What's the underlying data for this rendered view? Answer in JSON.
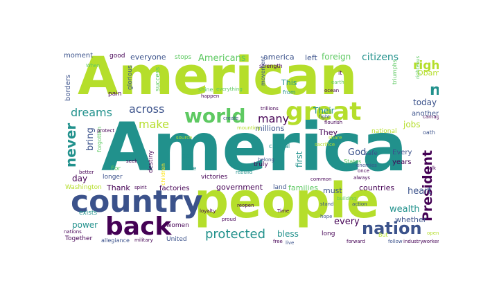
{
  "palette": {
    "purple": "#440154",
    "indigo": "#3b528b",
    "teal": "#21918c",
    "green": "#5ec962",
    "lime": "#b5de2b",
    "yellow": "#fde725"
  },
  "words": [
    {
      "text": "American",
      "color": "lime"
    },
    {
      "text": "America",
      "color": "teal"
    },
    {
      "text": "people",
      "color": "lime"
    },
    {
      "text": "country",
      "color": "indigo"
    },
    {
      "text": "back",
      "color": "purple"
    },
    {
      "text": "great",
      "color": "lime"
    },
    {
      "text": "world",
      "color": "green"
    },
    {
      "text": "nation",
      "color": "indigo"
    },
    {
      "text": "protected",
      "color": "teal"
    },
    {
      "text": "new",
      "color": "teal"
    },
    {
      "text": "right",
      "color": "lime"
    },
    {
      "text": "President",
      "color": "purple"
    },
    {
      "text": "never",
      "color": "teal"
    },
    {
      "text": "dreams",
      "color": "teal"
    },
    {
      "text": "across",
      "color": "indigo"
    },
    {
      "text": "make",
      "color": "lime"
    },
    {
      "text": "many",
      "color": "purple"
    },
    {
      "text": "millions",
      "color": "indigo"
    },
    {
      "text": "Americans",
      "color": "green"
    },
    {
      "text": "citizens",
      "color": "teal"
    },
    {
      "text": "everyone",
      "color": "indigo"
    },
    {
      "text": "america",
      "color": "indigo"
    },
    {
      "text": "foreign",
      "color": "green"
    },
    {
      "text": "bring",
      "color": "indigo"
    },
    {
      "text": "today",
      "color": "indigo"
    },
    {
      "text": "jobs",
      "color": "lime"
    },
    {
      "text": "heart",
      "color": "indigo"
    },
    {
      "text": "wealth",
      "color": "teal"
    },
    {
      "text": "every",
      "color": "purple"
    },
    {
      "text": "power",
      "color": "teal"
    },
    {
      "text": "government",
      "color": "purple"
    },
    {
      "text": "factories",
      "color": "purple"
    },
    {
      "text": "families",
      "color": "green"
    },
    {
      "text": "countries",
      "color": "purple"
    },
    {
      "text": "bless",
      "color": "teal"
    },
    {
      "text": "must",
      "color": "indigo"
    },
    {
      "text": "left",
      "color": "indigo"
    },
    {
      "text": "Obama",
      "color": "lime"
    },
    {
      "text": "day",
      "color": "purple"
    },
    {
      "text": "Thank",
      "color": "purple"
    },
    {
      "text": "God",
      "color": "indigo"
    },
    {
      "text": "first",
      "color": "teal"
    },
    {
      "text": "This",
      "color": "teal"
    },
    {
      "text": "Their",
      "color": "teal"
    },
    {
      "text": "They",
      "color": "purple"
    },
    {
      "text": "whether",
      "color": "indigo"
    },
    {
      "text": "Washington",
      "color": "lime"
    },
    {
      "text": "stops",
      "color": "green"
    },
    {
      "text": "good",
      "color": "purple"
    },
    {
      "text": "moment",
      "color": "indigo"
    },
    {
      "text": "borders",
      "color": "indigo"
    },
    {
      "text": "victories",
      "color": "purple"
    },
    {
      "text": "another",
      "color": "indigo"
    },
    {
      "text": "years",
      "color": "purple"
    },
    {
      "text": "Every",
      "color": "indigo"
    },
    {
      "text": "safe",
      "color": "indigo"
    },
    {
      "text": "States",
      "color": "green"
    },
    {
      "text": "women",
      "color": "purple"
    },
    {
      "text": "United",
      "color": "indigo"
    },
    {
      "text": "Together",
      "color": "purple"
    },
    {
      "text": "exists",
      "color": "teal"
    },
    {
      "text": "capital",
      "color": "teal"
    },
    {
      "text": "national",
      "color": "lime"
    },
    {
      "text": "like",
      "color": "teal"
    },
    {
      "text": "get",
      "color": "teal"
    },
    {
      "text": "longer",
      "color": "indigo"
    },
    {
      "text": "For",
      "color": "green"
    },
    {
      "text": "pain",
      "color": "purple"
    },
    {
      "text": "success",
      "color": "green"
    },
    {
      "text": "glorious",
      "color": "indigo"
    },
    {
      "text": "destiny",
      "color": "purple"
    },
    {
      "text": "land",
      "color": "indigo"
    },
    {
      "text": "truly",
      "color": "purple"
    },
    {
      "text": "long",
      "color": "purple"
    },
    {
      "text": "allegiance",
      "color": "indigo"
    },
    {
      "text": "military",
      "color": "purple"
    },
    {
      "text": "forgotten",
      "color": "green"
    },
    {
      "text": "oath",
      "color": "indigo"
    },
    {
      "text": "shine",
      "color": "green"
    },
    {
      "text": "strength",
      "color": "purple"
    },
    {
      "text": "movement",
      "color": "indigo"
    },
    {
      "text": "ocean",
      "color": "purple"
    },
    {
      "text": "trillions",
      "color": "purple"
    },
    {
      "text": "earth",
      "color": "green"
    },
    {
      "text": "triumphs",
      "color": "green"
    },
    {
      "text": "children",
      "color": "yellow"
    },
    {
      "text": "industry",
      "color": "purple"
    },
    {
      "text": "workers",
      "color": "purple"
    },
    {
      "text": "from",
      "color": "teal"
    },
    {
      "text": "it",
      "color": "purple"
    },
    {
      "text": "When",
      "color": "green"
    },
    {
      "text": "nations",
      "color": "purple"
    },
    {
      "text": "follow",
      "color": "indigo"
    },
    {
      "text": "But",
      "color": "lime"
    },
    {
      "text": "forward",
      "color": "purple"
    },
    {
      "text": "action",
      "color": "indigo"
    },
    {
      "text": "live",
      "color": "indigo"
    },
    {
      "text": "talk",
      "color": "purple"
    },
    {
      "text": "righteous",
      "color": "green"
    },
    {
      "text": "spirit",
      "color": "purple"
    },
    {
      "text": "loyalty",
      "color": "purple"
    },
    {
      "text": "reopen",
      "color": "purple"
    },
    {
      "text": "Time",
      "color": "purple"
    },
    {
      "text": "source",
      "color": "lime"
    },
    {
      "text": "always",
      "color": "purple"
    },
    {
      "text": "common",
      "color": "purple"
    },
    {
      "text": "rebuild",
      "color": "teal"
    },
    {
      "text": "mounting",
      "color": "lime"
    },
    {
      "text": "everything",
      "color": "green"
    },
    {
      "text": "create",
      "color": "indigo"
    },
    {
      "text": "share",
      "color": "lime"
    },
    {
      "text": "sacrifice",
      "color": "lime"
    },
    {
      "text": "flourish",
      "color": "purple"
    },
    {
      "text": "fight",
      "color": "indigo"
    },
    {
      "text": "carnage",
      "color": "purple"
    },
    {
      "text": "building",
      "color": "green"
    },
    {
      "text": "enemies",
      "color": "indigo"
    },
    {
      "text": "protect",
      "color": "purple"
    },
    {
      "text": "seek",
      "color": "purple"
    },
    {
      "text": "better",
      "color": "purple"
    },
    {
      "text": "happen",
      "color": "purple"
    },
    {
      "text": "stand",
      "color": "indigo"
    },
    {
      "text": "hope",
      "color": "indigo"
    },
    {
      "text": "open",
      "color": "lime"
    },
    {
      "text": "free",
      "color": "purple"
    },
    {
      "text": "proud",
      "color": "purple"
    },
    {
      "text": "once",
      "color": "purple"
    },
    {
      "text": "belong",
      "color": "indigo"
    }
  ]
}
